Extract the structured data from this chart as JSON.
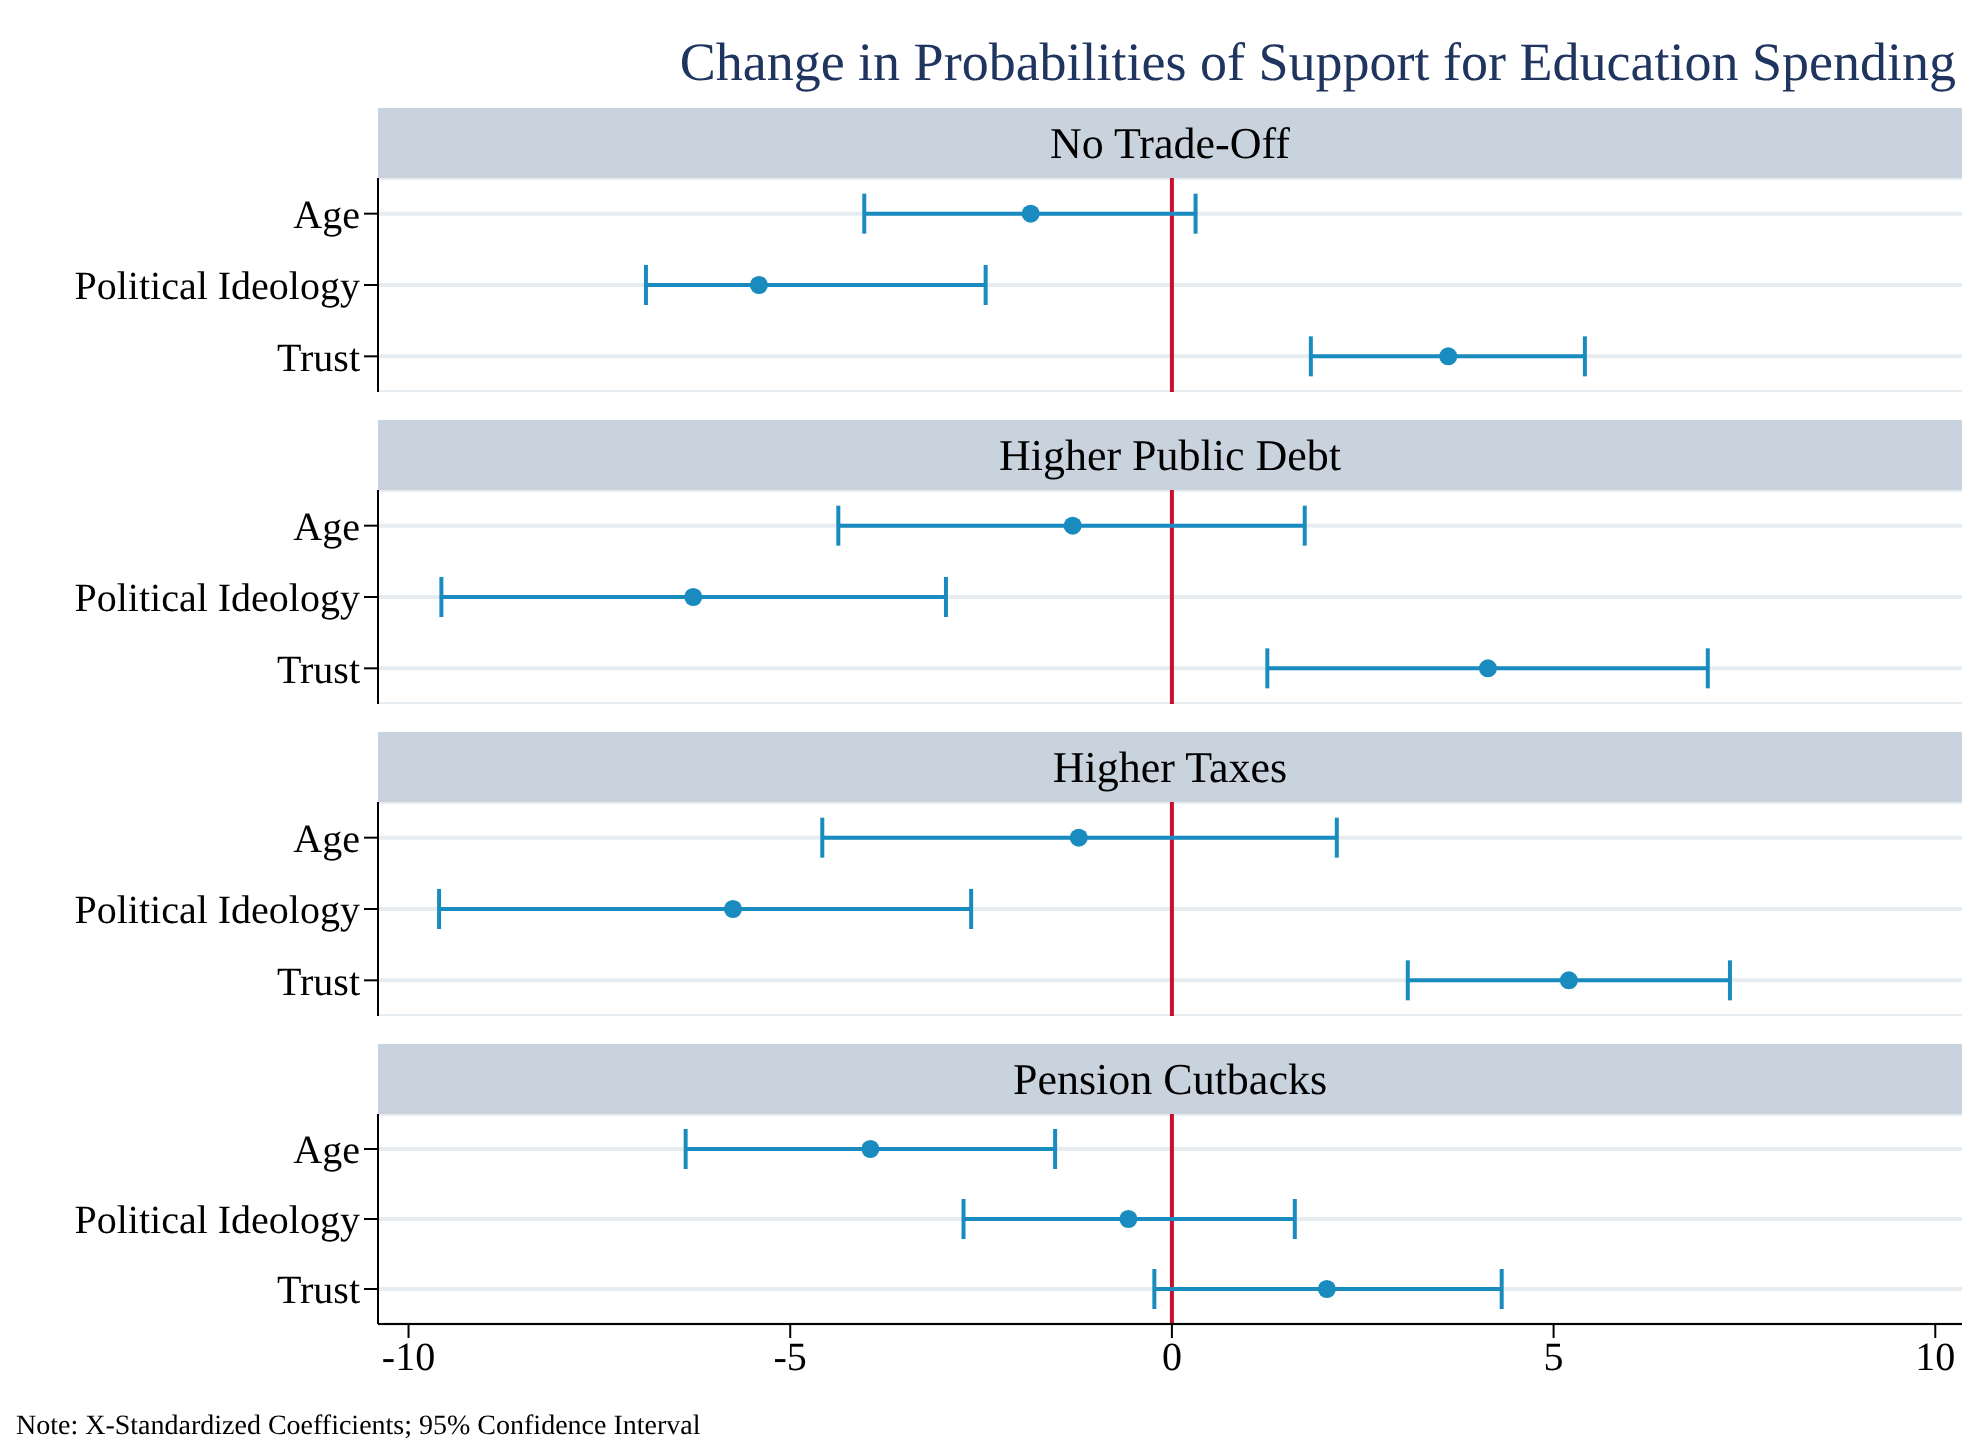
{
  "chart_data": [
    {
      "type": "scatter",
      "title": "Change in Probabilities of Support for Education Spending",
      "subtitle": "No Trade-Off",
      "orientation": "horizontal",
      "categories": [
        "Age",
        "Political Ideology",
        "Trust"
      ],
      "values": [
        -1.85,
        -5.41,
        3.62
      ],
      "errors": [
        [
          -4.03,
          0.31
        ],
        [
          -6.89,
          -2.44
        ],
        [
          1.82,
          5.41
        ]
      ],
      "color": "#1a8bbf",
      "marker": "circle",
      "xlim": [
        -10.4,
        10.35
      ],
      "xticks": [
        -10,
        -5,
        0,
        5,
        10
      ],
      "grid": "y",
      "tick_labels": "y",
      "ref_lines": [
        {
          "axis": "x",
          "value": 0,
          "color": "#c8102e"
        }
      ]
    },
    {
      "type": "scatter",
      "subtitle": "Higher Public Debt",
      "orientation": "horizontal",
      "categories": [
        "Age",
        "Political Ideology",
        "Trust"
      ],
      "values": [
        -1.3,
        -6.27,
        4.14
      ],
      "errors": [
        [
          -4.37,
          1.74
        ],
        [
          -9.57,
          -2.96
        ],
        [
          1.25,
          7.02
        ]
      ],
      "color": "#1a8bbf",
      "marker": "circle",
      "xlim": [
        -10.4,
        10.35
      ],
      "xticks": [
        -10,
        -5,
        0,
        5,
        10
      ],
      "grid": "y",
      "tick_labels": "y",
      "ref_lines": [
        {
          "axis": "x",
          "value": 0,
          "color": "#c8102e"
        }
      ]
    },
    {
      "type": "scatter",
      "subtitle": "Higher Taxes",
      "orientation": "horizontal",
      "categories": [
        "Age",
        "Political Ideology",
        "Trust"
      ],
      "values": [
        -1.22,
        -5.75,
        5.2
      ],
      "errors": [
        [
          -4.58,
          2.16
        ],
        [
          -9.6,
          -2.63
        ],
        [
          3.09,
          7.31
        ]
      ],
      "color": "#1a8bbf",
      "marker": "circle",
      "xlim": [
        -10.4,
        10.35
      ],
      "xticks": [
        -10,
        -5,
        0,
        5,
        10
      ],
      "grid": "y",
      "tick_labels": "y",
      "ref_lines": [
        {
          "axis": "x",
          "value": 0,
          "color": "#c8102e"
        }
      ]
    },
    {
      "type": "scatter",
      "subtitle": "Pension Cutbacks",
      "orientation": "horizontal",
      "categories": [
        "Age",
        "Political Ideology",
        "Trust"
      ],
      "values": [
        -3.95,
        -0.57,
        2.03
      ],
      "errors": [
        [
          -6.37,
          -1.53
        ],
        [
          -2.73,
          1.61
        ],
        [
          -0.23,
          4.32
        ]
      ],
      "color": "#1a8bbf",
      "marker": "circle",
      "xlim": [
        -10.4,
        10.35
      ],
      "xticks": [
        -10,
        -5,
        0,
        5,
        10
      ],
      "grid": "y",
      "ref_lines": [
        {
          "axis": "x",
          "value": 0,
          "color": "#c8102e"
        }
      ],
      "annotations": [
        "Note: X-Standardized Coefficients; 95% Confidence Interval"
      ]
    }
  ]
}
